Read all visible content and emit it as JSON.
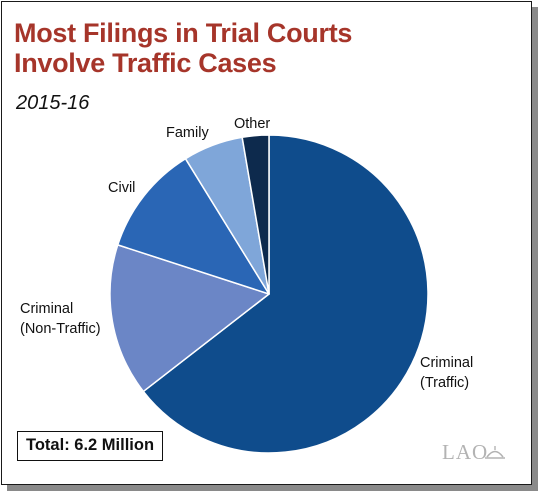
{
  "title_line1": "Most Filings in Trial Courts",
  "title_line2": "Involve Traffic Cases",
  "subtitle": "2015-16",
  "total_text": "Total: 6.2 Million",
  "logo_text": "LAO",
  "colors": {
    "title": "#a6352a",
    "criminal_traffic": "#0f4c8c",
    "criminal_nontraffic": "#6b86c6",
    "civil": "#2a66b5",
    "family": "#7fa6d9",
    "other": "#0d2a4d"
  },
  "chart_data": {
    "type": "pie",
    "title": "Most Filings in Trial Courts Involve Traffic Cases",
    "subtitle": "2015-16",
    "start_angle_deg": 0,
    "direction": "clockwise",
    "slices": [
      {
        "label": "Criminal (Traffic)",
        "label_lines": [
          "Criminal",
          "(Traffic)"
        ],
        "value": 64.5,
        "color": "#0f4c8c"
      },
      {
        "label": "Criminal (Non-Traffic)",
        "label_lines": [
          "Criminal",
          "(Non-Traffic)"
        ],
        "value": 15.5,
        "color": "#6b86c6"
      },
      {
        "label": "Civil",
        "label_lines": [
          "Civil"
        ],
        "value": 11.2,
        "color": "#2a66b5"
      },
      {
        "label": "Family",
        "label_lines": [
          "Family"
        ],
        "value": 6.1,
        "color": "#7fa6d9"
      },
      {
        "label": "Other",
        "label_lines": [
          "Other"
        ],
        "value": 2.7,
        "color": "#0d2a4d"
      }
    ],
    "total": "6.2 Million"
  }
}
